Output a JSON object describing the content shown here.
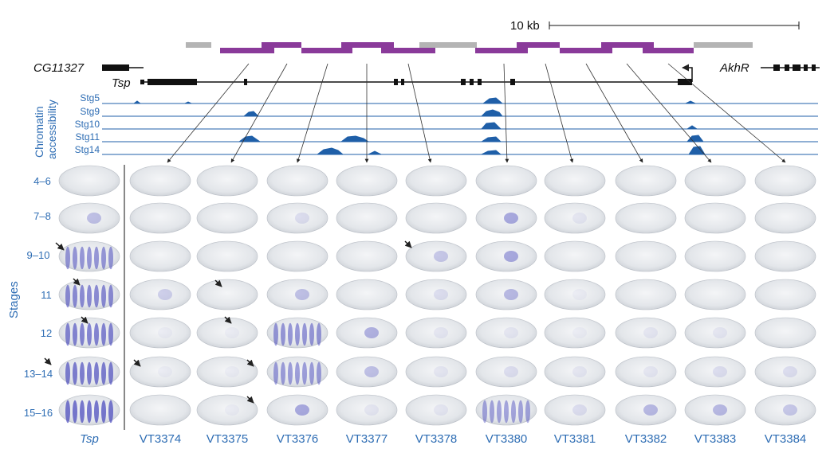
{
  "scale_bar": {
    "label": "10 kb"
  },
  "genes": {
    "cg11327": "CG11327",
    "tsp": "Tsp",
    "akhr": "AkhR"
  },
  "chromatin": {
    "title_line1": "Chromatin",
    "title_line2": "accessibility",
    "tracks": [
      "Stg5",
      "Stg9",
      "Stg10",
      "Stg11",
      "Stg14"
    ],
    "track_color": "#1f5fa8"
  },
  "stages": {
    "axis_label": "Stages",
    "rows": [
      "4–6",
      "7–8",
      "9–10",
      "11",
      "12",
      "13–14",
      "15–16"
    ]
  },
  "columns": [
    "Tsp",
    "VT3374",
    "VT3375",
    "VT3376",
    "VT3377",
    "VT3378",
    "VT3380",
    "VT3381",
    "VT3382",
    "VT3383",
    "VT3384"
  ],
  "colors": {
    "label_blue": "#2e6db4",
    "fragment_purple": "#8a3a9a",
    "fragment_gray": "#b4b4b4",
    "stain_blue": "#3a3ab8"
  }
}
